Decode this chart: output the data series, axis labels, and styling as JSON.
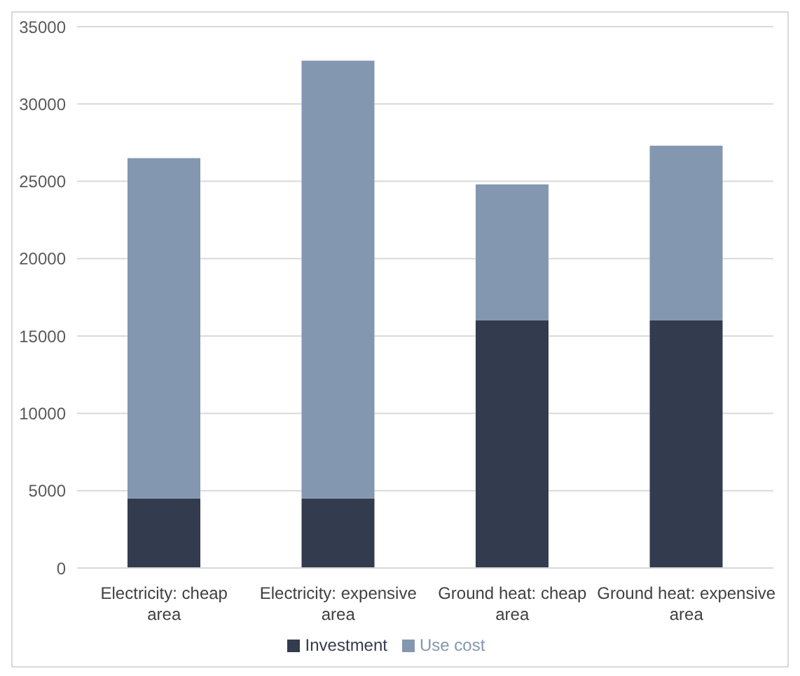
{
  "chart_data": {
    "type": "bar",
    "stacked": true,
    "categories": [
      "Electricity: cheap area",
      "Electricity: expensive area",
      "Ground heat: cheap area",
      "Ground heat: expensive area"
    ],
    "series": [
      {
        "name": "Investment",
        "color": "#333c4e",
        "values": [
          4500,
          4500,
          16000,
          16000
        ]
      },
      {
        "name": "Use cost",
        "color": "#8497b0",
        "values": [
          22000,
          28300,
          8800,
          11300
        ]
      }
    ],
    "ylim": [
      0,
      35000
    ],
    "yticks": [
      0,
      5000,
      10000,
      15000,
      20000,
      25000,
      30000,
      35000
    ],
    "grid": "y",
    "legend": "bottom"
  }
}
